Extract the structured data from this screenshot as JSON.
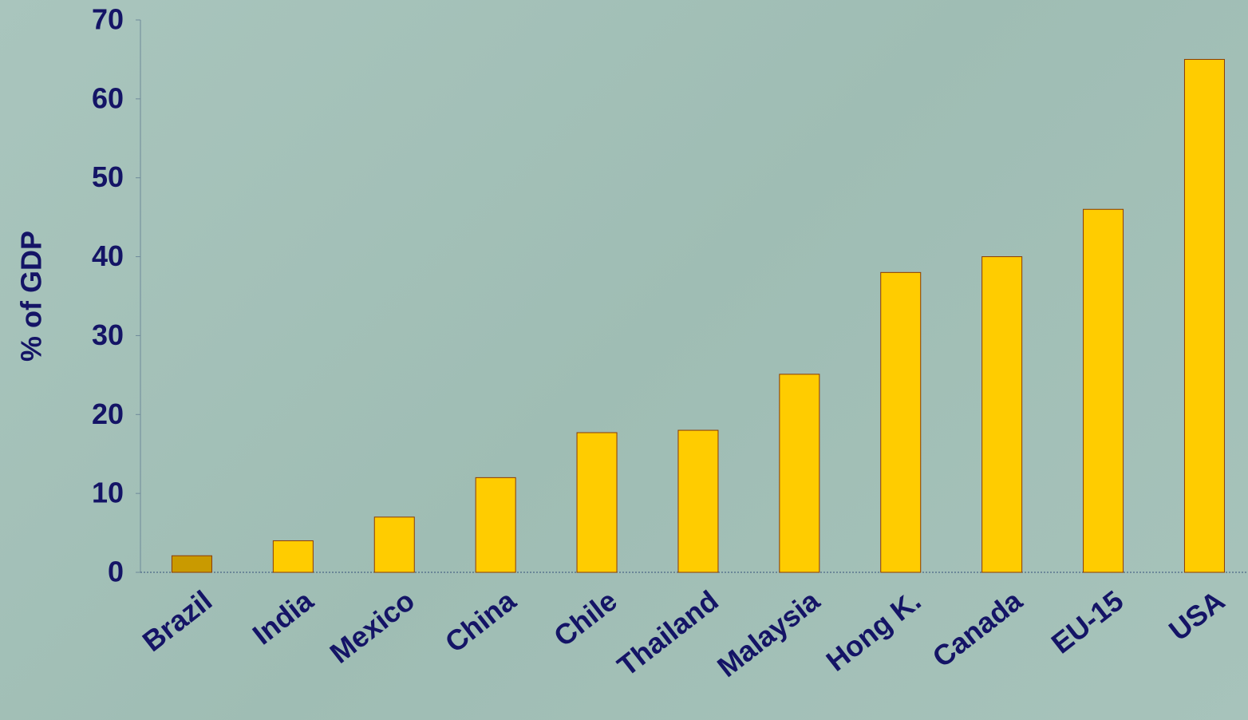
{
  "chart_data": {
    "type": "bar",
    "y_label": "% of GDP",
    "categories": [
      "Brazil",
      "India",
      "Mexico",
      "China",
      "Chile",
      "Thailand",
      "Malaysia",
      "Hong K.",
      "Canada",
      "EU-15",
      "USA"
    ],
    "values": [
      2.1,
      4.0,
      7.0,
      12.0,
      17.7,
      18.0,
      25.1,
      38.0,
      40.0,
      46.0,
      65.0
    ],
    "colors": [
      "#c99a00",
      "#ffcc00",
      "#ffcc00",
      "#ffcc00",
      "#ffcc00",
      "#ffcc00",
      "#ffcc00",
      "#ffcc00",
      "#ffcc00",
      "#ffcc00",
      "#ffcc00"
    ],
    "ylim": [
      0,
      70
    ],
    "yticks": [
      0,
      10,
      20,
      30,
      40,
      50,
      60,
      70
    ],
    "grid": false
  }
}
